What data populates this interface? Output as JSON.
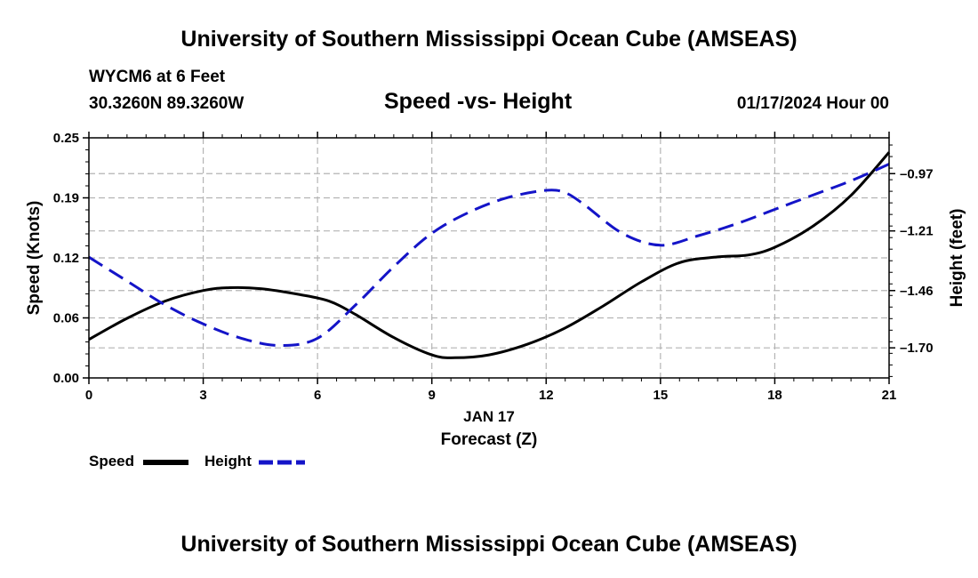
{
  "header": {
    "title": "University of Southern Mississippi Ocean Cube (AMSEAS)",
    "station": "WYCM6 at 6 Feet",
    "coords": "30.3260N  89.3260W",
    "plot_title": "Speed -vs- Height",
    "date_hour": "01/17/2024 Hour 00"
  },
  "footer": {
    "title": "University of Southern Mississippi Ocean Cube (AMSEAS)"
  },
  "legend": {
    "speed_label": "Speed",
    "height_label": "Height"
  },
  "colors": {
    "speed": "#000000",
    "height": "#1414c8",
    "grid": "#b4b4b4"
  },
  "chart_data": {
    "type": "line",
    "title": "Speed -vs- Height",
    "xlabel": "Forecast (Z)",
    "xlabel_date": "JAN 17",
    "ylabel_left": "Speed (Knots)",
    "ylabel_right": "Height (feet)",
    "xlim": [
      0,
      21
    ],
    "ylim_left": [
      0,
      0.25
    ],
    "ylim_right": [
      -1.826,
      -0.82
    ],
    "x_ticks": [
      0,
      3,
      6,
      9,
      12,
      15,
      18,
      21
    ],
    "x_tick_labels": [
      "0",
      "3",
      "6",
      "9",
      "12",
      "15",
      "18",
      "21"
    ],
    "left_ticks": [
      0,
      0.0625,
      0.125,
      0.1875,
      0.25
    ],
    "left_tick_labels": [
      "0.00",
      "0.06",
      "0.12",
      "0.19",
      "0.25"
    ],
    "right_ticks": [
      -0.97,
      -1.21,
      -1.46,
      -1.7
    ],
    "right_tick_labels": [
      "–0.97",
      "–1.21",
      "–1.46",
      "–1.70"
    ],
    "grid": true,
    "legend_position": "bottom-left",
    "series": [
      {
        "name": "Speed",
        "axis": "left",
        "style": "solid",
        "x": [
          0,
          1,
          2,
          3,
          3.7,
          4.5,
          5.5,
          6.3,
          7,
          8,
          9,
          9.6,
          10.5,
          11.5,
          12.5,
          13.5,
          14.5,
          15.5,
          16.5,
          17.3,
          18,
          19,
          20,
          21
        ],
        "values": [
          0.04,
          0.062,
          0.08,
          0.091,
          0.094,
          0.093,
          0.087,
          0.08,
          0.066,
          0.042,
          0.024,
          0.021,
          0.024,
          0.035,
          0.052,
          0.075,
          0.1,
          0.12,
          0.126,
          0.128,
          0.136,
          0.158,
          0.19,
          0.235
        ]
      },
      {
        "name": "Height",
        "axis": "right",
        "style": "dashed",
        "x": [
          0,
          1,
          2,
          3,
          4,
          5,
          6,
          7,
          8,
          9,
          10,
          11,
          12,
          12.5,
          13,
          14,
          15,
          16,
          17,
          18,
          19,
          20,
          21
        ],
        "values": [
          -1.32,
          -1.42,
          -1.52,
          -1.6,
          -1.66,
          -1.69,
          -1.66,
          -1.52,
          -1.36,
          -1.22,
          -1.13,
          -1.07,
          -1.04,
          -1.05,
          -1.1,
          -1.22,
          -1.27,
          -1.23,
          -1.18,
          -1.12,
          -1.06,
          -1.0,
          -0.93
        ]
      }
    ]
  }
}
